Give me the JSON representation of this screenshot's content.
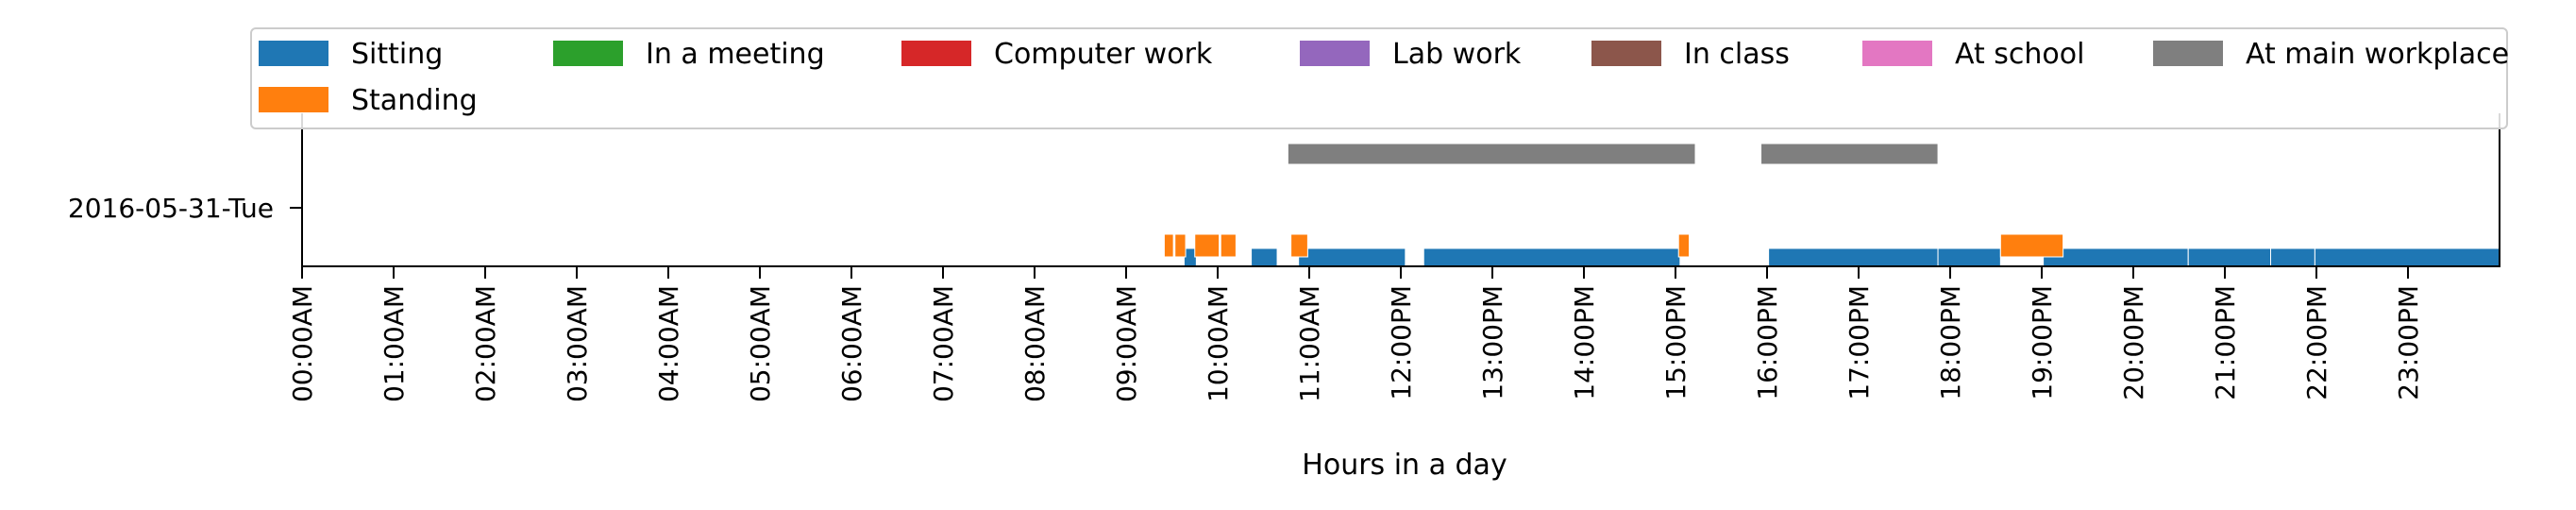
{
  "chart_data": {
    "type": "timeline",
    "xlabel": "Hours in a day",
    "x_range": [
      "00:00",
      "24:00"
    ],
    "y_categories": [
      "2016-05-31-Tue"
    ],
    "x_ticks": [
      "00:00AM",
      "01:00AM",
      "02:00AM",
      "03:00AM",
      "04:00AM",
      "05:00AM",
      "06:00AM",
      "07:00AM",
      "08:00AM",
      "09:00AM",
      "10:00AM",
      "11:00AM",
      "12:00PM",
      "13:00PM",
      "14:00PM",
      "15:00PM",
      "16:00PM",
      "17:00PM",
      "18:00PM",
      "19:00PM",
      "20:00PM",
      "21:00PM",
      "22:00PM",
      "23:00PM"
    ],
    "legend_position": "top",
    "legend": [
      {
        "name": "Sitting",
        "color": "#1f77b4"
      },
      {
        "name": "In a meeting",
        "color": "#2ca02c"
      },
      {
        "name": "Computer work",
        "color": "#d62728"
      },
      {
        "name": "Lab work",
        "color": "#9467bd"
      },
      {
        "name": "In class",
        "color": "#8c564b"
      },
      {
        "name": "At school",
        "color": "#e377c2"
      },
      {
        "name": "At main workplace",
        "color": "#7f7f7f"
      },
      {
        "name": "Standing",
        "color": "#ff7f0e"
      }
    ],
    "series": [
      {
        "name": "Sitting",
        "color": "#1f77b4",
        "lane": "bottom",
        "intervals": [
          [
            "09:38",
            "09:46"
          ],
          [
            "10:22",
            "10:39"
          ],
          [
            "10:53",
            "12:03"
          ],
          [
            "12:15",
            "15:03"
          ],
          [
            "16:01",
            "17:52"
          ],
          [
            "17:52",
            "18:33"
          ],
          [
            "19:01",
            "20:36"
          ],
          [
            "20:36",
            "21:30"
          ],
          [
            "21:30",
            "21:59"
          ],
          [
            "21:59",
            "24:00"
          ]
        ]
      },
      {
        "name": "Standing",
        "color": "#ff7f0e",
        "lane": "middle",
        "intervals": [
          [
            "09:25",
            "09:31"
          ],
          [
            "09:32",
            "09:39"
          ],
          [
            "09:45",
            "10:01"
          ],
          [
            "10:02",
            "10:12"
          ],
          [
            "10:48",
            "10:59"
          ],
          [
            "15:02",
            "15:09"
          ],
          [
            "18:33",
            "19:14"
          ]
        ]
      },
      {
        "name": "At main workplace",
        "color": "#7f7f7f",
        "lane": "top",
        "intervals": [
          [
            "10:46",
            "15:13"
          ],
          [
            "15:56",
            "17:52"
          ]
        ]
      }
    ]
  }
}
